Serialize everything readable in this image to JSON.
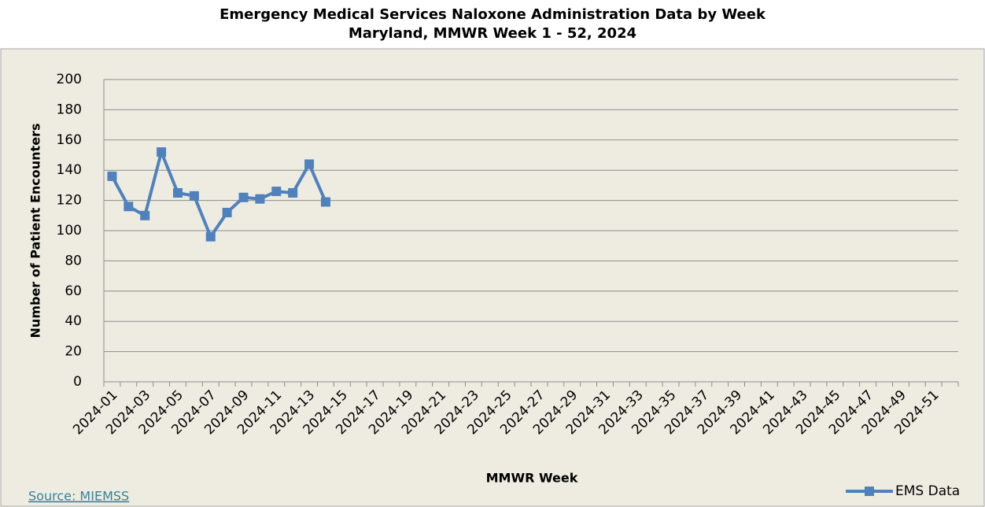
{
  "chart_data": {
    "type": "line",
    "title": "Emergency Medical Services Naloxone Administration Data by Week",
    "subtitle": "Maryland, MMWR Week 1 - 52, 2024",
    "x_label": "MMWR Week",
    "y_label": "Number of Patient Encounters",
    "source": "Source: MIEMSS",
    "categories": [
      "2024-01",
      null,
      "2024-03",
      null,
      "2024-05",
      null,
      "2024-07",
      null,
      "2024-09",
      null,
      "2024-11",
      null,
      "2024-13",
      null,
      "2024-15",
      null,
      "2024-17",
      null,
      "2024-19",
      null,
      "2024-21",
      null,
      "2024-23",
      null,
      "2024-25",
      null,
      "2024-27",
      null,
      "2024-29",
      null,
      "2024-31",
      null,
      "2024-33",
      null,
      "2024-35",
      null,
      "2024-37",
      null,
      "2024-39",
      null,
      "2024-41",
      null,
      "2024-43",
      null,
      "2024-45",
      null,
      "2024-47",
      null,
      "2024-49",
      null,
      "2024-51",
      null
    ],
    "series": [
      {
        "name": "EMS Data",
        "color": "#4f81bd",
        "values": [
          136,
          116,
          110,
          152,
          125,
          123,
          96,
          112,
          122,
          121,
          126,
          125,
          144,
          119,
          null,
          null,
          null,
          null,
          null,
          null,
          null,
          null,
          null,
          null,
          null,
          null,
          null,
          null,
          null,
          null,
          null,
          null,
          null,
          null,
          null,
          null,
          null,
          null,
          null,
          null,
          null,
          null,
          null,
          null,
          null,
          null,
          null,
          null,
          null,
          null,
          null,
          null
        ]
      }
    ],
    "ylim": [
      0,
      200
    ],
    "yticks": [
      0,
      20,
      40,
      60,
      80,
      100,
      120,
      140,
      160,
      180,
      200
    ],
    "grid": true,
    "legend": "bottom-right"
  }
}
